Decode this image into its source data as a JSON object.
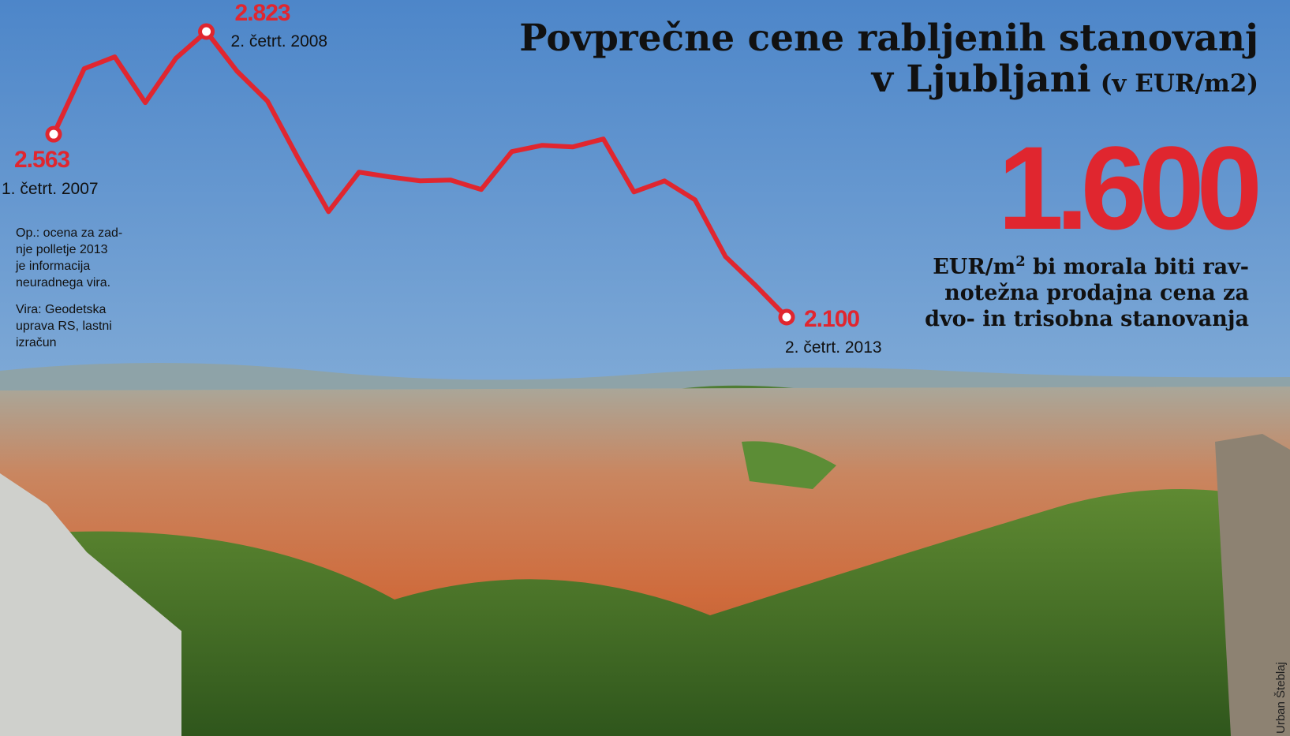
{
  "chart_data": {
    "type": "line",
    "title": [
      "Povprečne cene rabljenih stanovanj",
      "v Ljubljani"
    ],
    "subtitle": "(v EUR/m2)",
    "categories": [
      "1. četrt. 2007",
      null,
      null,
      null,
      null,
      "2. četrt. 2008",
      null,
      null,
      null,
      null,
      null,
      null,
      null,
      null,
      null,
      null,
      null,
      null,
      null,
      null,
      null,
      null,
      null,
      null,
      "2. četrt. 2013"
    ],
    "series": [
      {
        "name": null,
        "color": "#e0262f",
        "values": [
          2563,
          2729,
          2759,
          2643,
          2755,
          2823,
          2723,
          2647,
          2503,
          2367,
          2467,
          2455,
          2445,
          2447,
          2423,
          2519,
          2535,
          2531,
          2551,
          2417,
          2445,
          2397,
          2253,
          2179,
          2100
        ],
        "value_labels": [
          "2.563",
          null,
          null,
          null,
          null,
          "2.823",
          null,
          null,
          null,
          null,
          null,
          null,
          null,
          null,
          null,
          null,
          null,
          null,
          null,
          null,
          null,
          null,
          null,
          null,
          "2.100"
        ]
      }
    ],
    "highlight": {
      "value": 1600,
      "label": "1.600",
      "text": [
        "EUR/m",
        "2",
        " bi morala biti rav-",
        "notežna prodajna cena za",
        "dvo- in trisobna stanovanja"
      ]
    },
    "notes": [
      "Op.: ocena za zad-",
      "nje polletje 2013",
      "je informacija",
      "neuradnega vira.",
      "Vira: Geodetska",
      "uprava RS, lastni",
      "izračun"
    ],
    "credit": "Urban Šteblaj"
  }
}
